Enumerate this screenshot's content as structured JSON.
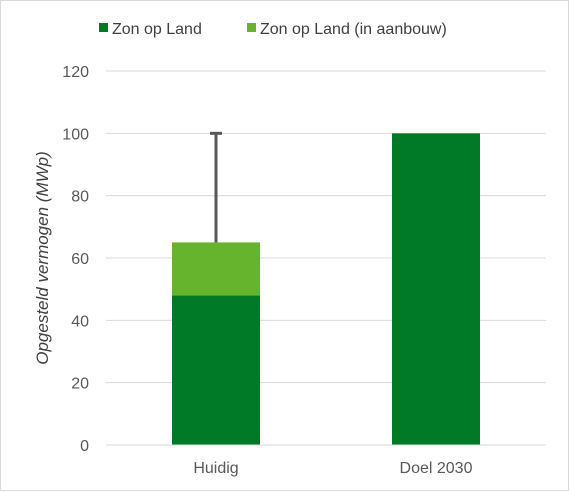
{
  "chart_data": {
    "type": "bar",
    "stacked": true,
    "title": "",
    "xlabel": "",
    "ylabel": "Opgesteld vermogen (MWp)",
    "ylim": [
      0,
      120
    ],
    "yticks": [
      0,
      20,
      40,
      60,
      80,
      100,
      120
    ],
    "yticks_labels": [
      "0",
      "20",
      "40",
      "60",
      "80",
      "100",
      "120"
    ],
    "grid": true,
    "legend_position": "top",
    "categories": [
      "Huidig",
      "Doel 2030"
    ],
    "series": [
      {
        "name": "Zon op Land",
        "values": [
          48,
          100
        ],
        "color": "#007a27"
      },
      {
        "name": "Zon op Land (in aanbouw)",
        "values": [
          17,
          0
        ],
        "color": "#66b32e"
      }
    ],
    "error_bar": {
      "category": "Huidig",
      "from": 65,
      "to": 100,
      "color": "#595959"
    }
  }
}
